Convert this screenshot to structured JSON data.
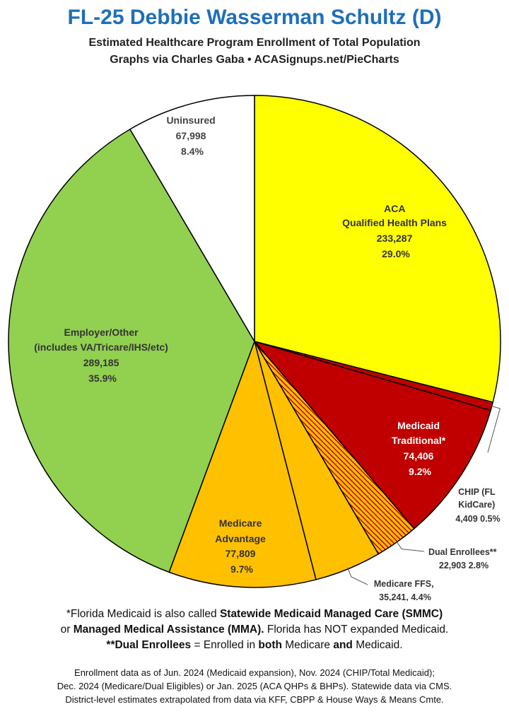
{
  "header": {
    "title": "FL-25 Debbie Wasserman Schultz (D)",
    "subtitle": "Estimated Healthcare Program Enrollment of Total Population",
    "credit": "Graphs via Charles Gaba  •  ACASignups.net/PieCharts"
  },
  "chart_data": {
    "type": "pie",
    "slices": [
      {
        "label": "ACA Qualified Health Plans",
        "value": 233287,
        "percent": "29.0%",
        "color": "#ffff00"
      },
      {
        "label": "CHIP (FL KidCare)",
        "value": 4409,
        "percent": "0.5%",
        "color": "#c00000"
      },
      {
        "label": "Medicaid Traditional*",
        "value": 74406,
        "percent": "9.2%",
        "color": "#c00000"
      },
      {
        "label": "Dual Enrollees**",
        "value": 22903,
        "percent": "2.8%",
        "color": "#e07020"
      },
      {
        "label": "Medicare FFS,",
        "value": 35241,
        "percent": "4.4%",
        "color": "#ffc000"
      },
      {
        "label": "Medicare Advantage",
        "value": 77809,
        "percent": "9.7%",
        "color": "#ffc000"
      },
      {
        "label": "Employer/Other (includes VA/Tricare/IHS/etc)",
        "value": 289185,
        "percent": "35.9%",
        "color": "#92d050"
      },
      {
        "label": "Uninsured",
        "value": 67998,
        "percent": "8.4%",
        "color": "#ffffff"
      }
    ]
  },
  "labels": {
    "aca": [
      "ACA",
      "Qualified Health Plans",
      "233,287",
      "29.0%"
    ],
    "medicaid": [
      "Medicaid",
      "Traditional*",
      "74,406",
      "9.2%"
    ],
    "chip": [
      "CHIP (FL",
      "KidCare)",
      "4,409 0.5%"
    ],
    "dual": [
      "Dual Enrollees**",
      "22,903 2.8%"
    ],
    "ffs": [
      "Medicare FFS,",
      "35,241, 4.4%"
    ],
    "advantage": [
      "Medicare",
      "Advantage",
      "77,809",
      "9.7%"
    ],
    "employer": [
      "Employer/Other",
      "(includes VA/Tricare/IHS/etc)",
      "289,185",
      "35.9%"
    ],
    "uninsured": [
      "Uninsured",
      "67,998",
      "8.4%"
    ]
  },
  "notes": {
    "line1_a": "*Florida Medicaid is also called ",
    "line1_b": "Statewide Medicaid Managed Care (SMMC)",
    "line2_a": "or ",
    "line2_b": "Managed Medical Assistance (MMA).",
    "line2_c": " Florida has NOT expanded Medicaid.",
    "line3_a": "**Dual Enrollees",
    "line3_b": " = Enrolled in ",
    "line3_c": "both",
    "line3_d": " Medicare ",
    "line3_e": "and",
    "line3_f": " Medicaid."
  },
  "source": {
    "line1": "Enrollment data as of Jun. 2024 (Medicaid expansion), Nov. 2024 (CHIP/Total Medicaid);",
    "line2": "Dec. 2024 (Medicare/Dual Eligibles) or Jan. 2025 (ACA QHPs & BHPs). Statewide data via CMS.",
    "line3": "District-level estimates extrapolated from data via KFF, CBPP & House Ways & Means Cmte."
  }
}
